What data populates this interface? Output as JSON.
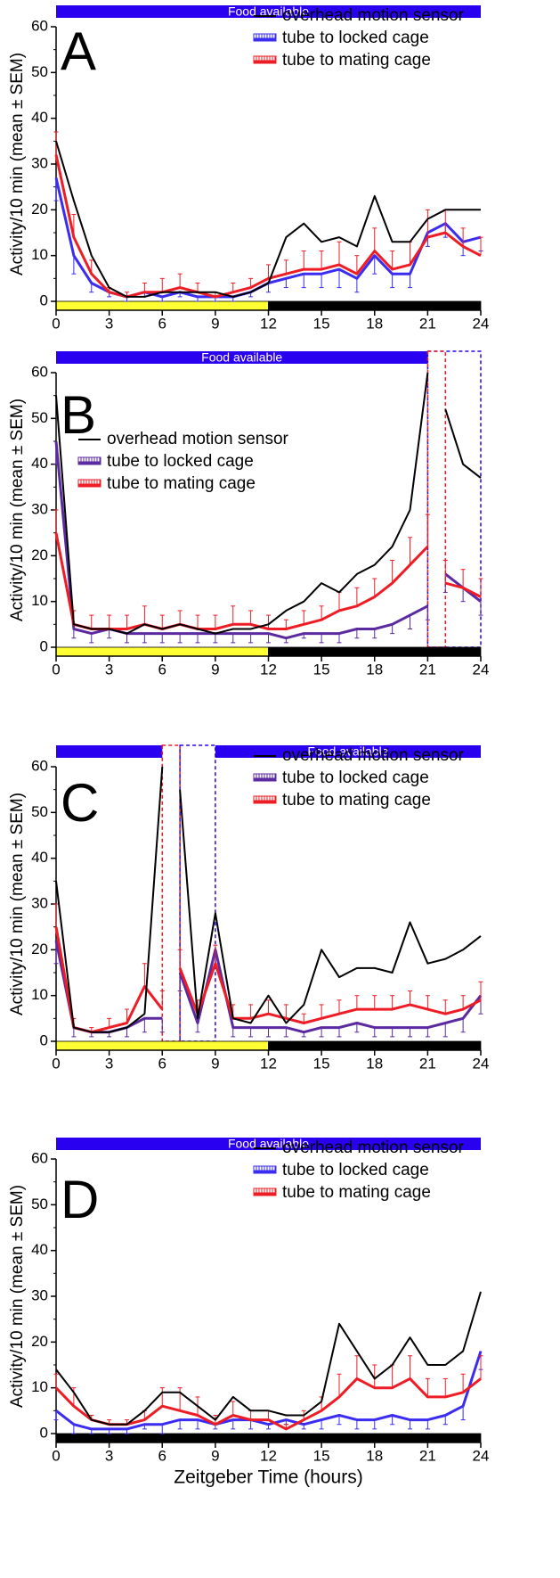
{
  "chart_data": [
    {
      "type": "line",
      "panel_label": "A",
      "y_label": "Activity/10 min (mean ± SEM)",
      "legend": "upper right",
      "xlim": [
        0,
        24
      ],
      "xticks": [
        0,
        3,
        6,
        9,
        12,
        15,
        18,
        21,
        24
      ],
      "ylim": [
        0,
        60
      ],
      "yticks": [
        0,
        10,
        20,
        30,
        40,
        50,
        60
      ],
      "food_bar": {
        "label": "Food available",
        "color": "#2a00f0",
        "segments": [
          [
            0,
            24
          ]
        ]
      },
      "food_removed": [],
      "light_phases": [
        {
          "start": 0,
          "end": 12,
          "color": "#ffff33"
        },
        {
          "start": 12,
          "end": 24,
          "color": "#000000"
        }
      ],
      "x": [
        0,
        1,
        2,
        3,
        4,
        5,
        6,
        7,
        8,
        9,
        10,
        11,
        12,
        13,
        14,
        15,
        16,
        17,
        18,
        19,
        20,
        21,
        22,
        23,
        24
      ],
      "series": [
        {
          "name": "overhead motion sensor",
          "color": "#000000",
          "values": [
            35,
            22,
            10,
            3,
            1,
            1,
            2,
            2,
            2,
            2,
            1,
            2,
            4,
            14,
            17,
            13,
            14,
            12,
            23,
            13,
            13,
            18,
            20,
            20,
            20
          ]
        },
        {
          "name": "tube to locked cage",
          "color": "#3a2cf0",
          "values": [
            27,
            10,
            4,
            2,
            1,
            2,
            1,
            2,
            1,
            1,
            1,
            2,
            4,
            5,
            6,
            6,
            7,
            5,
            10,
            6,
            6,
            15,
            17,
            13,
            14
          ],
          "errors": [
            5,
            4,
            2,
            1,
            1,
            1,
            1,
            1,
            1,
            1,
            1,
            1,
            2,
            2,
            3,
            3,
            4,
            3,
            4,
            3,
            3,
            3,
            3,
            3,
            3
          ]
        },
        {
          "name": "tube to mating cage",
          "color": "#ee1c24",
          "values": [
            32,
            14,
            6,
            2,
            1,
            2,
            2,
            3,
            2,
            1,
            2,
            3,
            5,
            6,
            7,
            7,
            8,
            6,
            11,
            7,
            8,
            14,
            15,
            12,
            10
          ],
          "errors": [
            5,
            5,
            3,
            1,
            1,
            2,
            3,
            3,
            2,
            1,
            2,
            2,
            3,
            3,
            4,
            4,
            5,
            4,
            5,
            4,
            5,
            6,
            5,
            4,
            4
          ]
        }
      ]
    },
    {
      "type": "line",
      "panel_label": "B",
      "y_label": "Activity/10 min (mean ± SEM)",
      "legend": "center left",
      "xlim": [
        0,
        24
      ],
      "xticks": [
        0,
        3,
        6,
        9,
        12,
        15,
        18,
        21,
        24
      ],
      "ylim": [
        0,
        60
      ],
      "yticks": [
        0,
        10,
        20,
        30,
        40,
        50,
        60
      ],
      "food_bar": {
        "label": "Food available",
        "color": "#2a00f0",
        "segments": [
          [
            0,
            21
          ]
        ]
      },
      "food_removed": [
        {
          "start": 21,
          "end": 24,
          "color": "#2a00f0"
        },
        {
          "start": 21,
          "end": 22,
          "color": "#ee1c24"
        }
      ],
      "light_phases": [
        {
          "start": 0,
          "end": 12,
          "color": "#ffff33"
        },
        {
          "start": 12,
          "end": 24,
          "color": "#000000"
        }
      ],
      "x": [
        0,
        1,
        2,
        3,
        4,
        5,
        6,
        7,
        8,
        9,
        10,
        11,
        12,
        13,
        14,
        15,
        16,
        17,
        18,
        19,
        20,
        21,
        21.5,
        22,
        23,
        24
      ],
      "series": [
        {
          "name": "overhead motion sensor",
          "color": "#000000",
          "values": [
            55,
            5,
            4,
            4,
            3,
            5,
            4,
            5,
            4,
            3,
            4,
            4,
            5,
            8,
            10,
            14,
            12,
            16,
            18,
            22,
            30,
            60,
            null,
            52,
            40,
            37
          ]
        },
        {
          "name": "tube to locked cage",
          "color": "#5b2aa0",
          "values": [
            45,
            4,
            3,
            4,
            3,
            3,
            3,
            3,
            3,
            3,
            3,
            3,
            3,
            2,
            3,
            3,
            3,
            4,
            4,
            5,
            7,
            9,
            null,
            16,
            13,
            10
          ],
          "errors": [
            5,
            2,
            2,
            2,
            2,
            2,
            2,
            2,
            2,
            2,
            2,
            2,
            2,
            1,
            1,
            2,
            2,
            2,
            2,
            2,
            3,
            3,
            null,
            4,
            3,
            3
          ]
        },
        {
          "name": "tube to mating cage",
          "color": "#ee1c24",
          "values": [
            25,
            5,
            4,
            4,
            4,
            5,
            4,
            5,
            4,
            4,
            5,
            5,
            4,
            4,
            5,
            6,
            8,
            9,
            11,
            14,
            18,
            22,
            null,
            14,
            13,
            11
          ],
          "errors": [
            5,
            3,
            3,
            3,
            3,
            4,
            3,
            3,
            3,
            3,
            4,
            3,
            3,
            2,
            3,
            3,
            4,
            4,
            4,
            5,
            6,
            7,
            null,
            5,
            4,
            4
          ]
        }
      ]
    },
    {
      "type": "line",
      "panel_label": "C",
      "y_label": "Activity/10 min (mean ± SEM)",
      "legend": "upper right",
      "xlim": [
        0,
        24
      ],
      "xticks": [
        0,
        3,
        6,
        9,
        12,
        15,
        18,
        21,
        24
      ],
      "ylim": [
        0,
        60
      ],
      "yticks": [
        0,
        10,
        20,
        30,
        40,
        50,
        60
      ],
      "food_bar": {
        "label": "Food available",
        "color": "#2a00f0",
        "segments": [
          [
            0,
            6
          ],
          [
            9,
            24
          ]
        ]
      },
      "food_removed": [
        {
          "start": 6,
          "end": 7,
          "color": "#ee1c24"
        },
        {
          "start": 7,
          "end": 9,
          "color": "#2a00f0"
        }
      ],
      "light_phases": [
        {
          "start": 0,
          "end": 12,
          "color": "#ffff33"
        },
        {
          "start": 12,
          "end": 24,
          "color": "#000000"
        }
      ],
      "x": [
        0,
        1,
        2,
        3,
        4,
        5,
        6,
        6.5,
        7,
        8,
        9,
        10,
        11,
        12,
        13,
        14,
        15,
        16,
        17,
        18,
        19,
        20,
        21,
        22,
        23,
        24
      ],
      "series": [
        {
          "name": "overhead motion sensor",
          "color": "#000000",
          "values": [
            35,
            3,
            2,
            2,
            3,
            6,
            60,
            null,
            55,
            5,
            28,
            5,
            4,
            10,
            4,
            8,
            20,
            14,
            16,
            16,
            15,
            26,
            17,
            18,
            20,
            23
          ]
        },
        {
          "name": "tube to locked cage",
          "color": "#5b2aa0",
          "values": [
            22,
            3,
            2,
            2,
            3,
            5,
            5,
            null,
            15,
            4,
            20,
            3,
            3,
            3,
            3,
            2,
            3,
            3,
            4,
            3,
            3,
            3,
            3,
            4,
            5,
            10
          ],
          "errors": [
            5,
            2,
            1,
            1,
            2,
            3,
            3,
            null,
            4,
            2,
            4,
            2,
            2,
            2,
            2,
            1,
            2,
            2,
            2,
            2,
            2,
            2,
            2,
            3,
            3,
            4
          ]
        },
        {
          "name": "tube to mating cage",
          "color": "#ee1c24",
          "values": [
            25,
            3,
            2,
            3,
            4,
            12,
            7,
            null,
            16,
            6,
            17,
            5,
            5,
            6,
            5,
            4,
            5,
            6,
            7,
            7,
            7,
            8,
            7,
            6,
            7,
            9
          ],
          "errors": [
            5,
            2,
            1,
            2,
            3,
            5,
            4,
            null,
            4,
            3,
            4,
            3,
            3,
            3,
            3,
            2,
            3,
            3,
            3,
            3,
            3,
            3,
            3,
            3,
            3,
            4
          ]
        }
      ]
    },
    {
      "type": "line",
      "panel_label": "D",
      "y_label": "Activity/10 min (mean ± SEM)",
      "x_label": "Zeitgeber Time (hours)",
      "legend": "upper right",
      "xlim": [
        0,
        24
      ],
      "xticks": [
        0,
        3,
        6,
        9,
        12,
        15,
        18,
        21,
        24
      ],
      "ylim": [
        0,
        60
      ],
      "yticks": [
        0,
        10,
        20,
        30,
        40,
        50,
        60
      ],
      "food_bar": {
        "label": "Food available",
        "color": "#2a00f0",
        "segments": [
          [
            0,
            24
          ]
        ]
      },
      "food_removed": [],
      "light_phases": [
        {
          "start": 0,
          "end": 24,
          "color": "#000000"
        }
      ],
      "x": [
        0,
        1,
        2,
        3,
        4,
        5,
        6,
        7,
        8,
        9,
        10,
        11,
        12,
        13,
        14,
        15,
        16,
        17,
        18,
        19,
        20,
        21,
        22,
        23,
        24
      ],
      "series": [
        {
          "name": "overhead motion sensor",
          "color": "#000000",
          "values": [
            14,
            9,
            3,
            2,
            2,
            5,
            9,
            9,
            6,
            3,
            8,
            5,
            5,
            4,
            4,
            7,
            24,
            18,
            12,
            15,
            21,
            15,
            15,
            18,
            31
          ]
        },
        {
          "name": "tube to locked cage",
          "color": "#3a2cf0",
          "values": [
            5,
            2,
            1,
            1,
            1,
            2,
            2,
            3,
            3,
            2,
            3,
            3,
            2,
            3,
            2,
            3,
            4,
            3,
            3,
            4,
            3,
            3,
            4,
            6,
            18
          ],
          "errors": [
            2,
            2,
            1,
            1,
            1,
            1,
            2,
            2,
            2,
            1,
            2,
            2,
            1,
            1,
            1,
            2,
            2,
            2,
            2,
            2,
            2,
            2,
            2,
            3,
            4
          ]
        },
        {
          "name": "tube to mating cage",
          "color": "#ee1c24",
          "values": [
            10,
            6,
            3,
            2,
            2,
            3,
            6,
            5,
            4,
            2,
            4,
            3,
            3,
            1,
            3,
            5,
            8,
            12,
            10,
            10,
            12,
            8,
            8,
            9,
            12
          ],
          "errors": [
            3,
            4,
            1,
            1,
            1,
            2,
            4,
            5,
            4,
            2,
            3,
            2,
            2,
            1,
            2,
            3,
            5,
            5,
            5,
            5,
            5,
            4,
            4,
            4,
            5
          ]
        }
      ]
    }
  ]
}
